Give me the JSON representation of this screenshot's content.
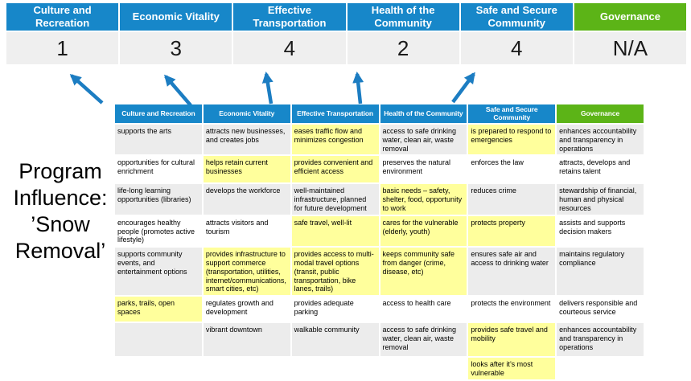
{
  "program_label": "Program Influence: ’Snow Removal’",
  "colors": {
    "header_blue": "#1787c9",
    "governance_green": "#5cb417",
    "highlight_yellow": "#ffff9c",
    "score_band_bg": "#efefef",
    "band_row_gray": "#ececec",
    "arrow_blue": "#1c7dc2"
  },
  "scoreboard": {
    "columns": [
      {
        "label": "Culture and Recreation",
        "score": "1",
        "accent": "#1787c9"
      },
      {
        "label": "Economic Vitality",
        "score": "3",
        "accent": "#1787c9"
      },
      {
        "label": "Effective Transportation",
        "score": "4",
        "accent": "#1787c9"
      },
      {
        "label": "Health of the Community",
        "score": "2",
        "accent": "#1787c9"
      },
      {
        "label": "Safe and Secure Community",
        "score": "4",
        "accent": "#1787c9"
      },
      {
        "label": "Governance",
        "score": "N/A",
        "accent": "#5cb417"
      }
    ]
  },
  "matrix": {
    "headers": [
      {
        "label": "Culture and Recreation",
        "accent": "#1787c9"
      },
      {
        "label": "Economic Vitality",
        "accent": "#1787c9"
      },
      {
        "label": "Effective Transportation",
        "accent": "#1787c9"
      },
      {
        "label": "Health of the Community",
        "accent": "#1787c9"
      },
      {
        "label": "Safe and Secure Community",
        "accent": "#1787c9"
      },
      {
        "label": "Governance",
        "accent": "#5cb417"
      }
    ],
    "rows": [
      {
        "cells": [
          {
            "text": "supports the arts",
            "hl": false
          },
          {
            "text": "attracts new businesses, and creates jobs",
            "hl": false
          },
          {
            "text": "eases traffic flow and minimizes congestion",
            "hl": true
          },
          {
            "text": "access to safe drinking water, clean air, waste removal",
            "hl": false
          },
          {
            "text": "is prepared to respond to emergencies",
            "hl": true
          },
          {
            "text": "enhances accountability and transparency in operations",
            "hl": false
          }
        ]
      },
      {
        "cells": [
          {
            "text": "opportunities for cultural enrichment",
            "hl": false
          },
          {
            "text": "helps retain current businesses",
            "hl": true
          },
          {
            "text": "provides convenient and efficient access",
            "hl": true
          },
          {
            "text": "preserves the natural environment",
            "hl": false
          },
          {
            "text": "enforces the law",
            "hl": false
          },
          {
            "text": "attracts, develops and retains talent",
            "hl": false
          }
        ]
      },
      {
        "cells": [
          {
            "text": "life-long learning opportunities (libraries)",
            "hl": false
          },
          {
            "text": "develops the workforce",
            "hl": false
          },
          {
            "text": "well-maintained infrastructure, planned for future development",
            "hl": false
          },
          {
            "text": "basic needs – safety, shelter, food, opportunity to work",
            "hl": true
          },
          {
            "text": "reduces crime",
            "hl": false
          },
          {
            "text": "stewardship of financial, human and physical resources",
            "hl": false
          }
        ]
      },
      {
        "cells": [
          {
            "text": "encourages healthy people (promotes active lifestyle)",
            "hl": false
          },
          {
            "text": "attracts visitors and tourism",
            "hl": false
          },
          {
            "text": "safe travel, well-lit",
            "hl": true
          },
          {
            "text": "cares for the vulnerable (elderly, youth)",
            "hl": true
          },
          {
            "text": "protects property",
            "hl": true
          },
          {
            "text": "assists and supports decision makers",
            "hl": false
          }
        ]
      },
      {
        "cells": [
          {
            "text": "supports community events, and entertainment options",
            "hl": false
          },
          {
            "text": "provides infrastructure to support commerce (transportation, utilities, internet/communications, smart cities, etc)",
            "hl": true
          },
          {
            "text": "provides access to multi-modal travel options (transit, public transportation, bike lanes, trails)",
            "hl": true
          },
          {
            "text": "keeps community safe from danger (crime, disease, etc)",
            "hl": true
          },
          {
            "text": "ensures safe air and access to drinking water",
            "hl": false
          },
          {
            "text": "maintains regulatory compliance",
            "hl": false
          }
        ]
      },
      {
        "cells": [
          {
            "text": "parks, trails, open spaces",
            "hl": true
          },
          {
            "text": "regulates growth and development",
            "hl": false
          },
          {
            "text": "provides adequate parking",
            "hl": false
          },
          {
            "text": "access to health care",
            "hl": false
          },
          {
            "text": "protects the environment",
            "hl": false
          },
          {
            "text": "delivers responsible and courteous service",
            "hl": false
          }
        ]
      },
      {
        "cells": [
          {
            "text": "",
            "hl": false
          },
          {
            "text": "vibrant downtown",
            "hl": false
          },
          {
            "text": "walkable community",
            "hl": false
          },
          {
            "text": "access to safe drinking water, clean air, waste removal",
            "hl": false
          },
          {
            "text": "provides safe travel and mobility",
            "hl": true
          },
          {
            "text": "enhances accountability and transparency in operations",
            "hl": false
          }
        ]
      },
      {
        "cells": [
          {
            "text": "",
            "hl": false
          },
          {
            "text": "",
            "hl": false
          },
          {
            "text": "",
            "hl": false
          },
          {
            "text": "",
            "hl": false
          },
          {
            "text": "looks after it’s most vulnerable",
            "hl": true
          },
          {
            "text": "",
            "hl": false
          }
        ]
      }
    ]
  }
}
